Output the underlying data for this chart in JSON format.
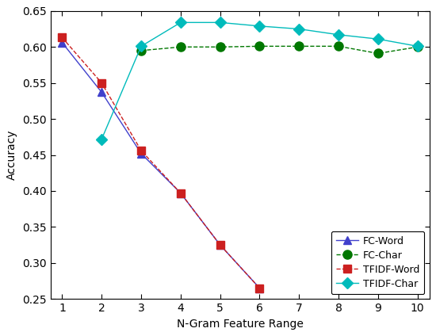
{
  "x": [
    1,
    2,
    3,
    4,
    5,
    6,
    7,
    8,
    9,
    10
  ],
  "fc_word": [
    0.606,
    0.537,
    0.452,
    0.397,
    0.325,
    0.265,
    null,
    null,
    null,
    null
  ],
  "fc_char": [
    null,
    null,
    0.595,
    0.6,
    0.6,
    0.601,
    0.601,
    0.601,
    0.591,
    0.6
  ],
  "tfidf_word": [
    0.613,
    0.55,
    0.456,
    0.397,
    0.325,
    0.265,
    null,
    null,
    null,
    null
  ],
  "tfidf_char": [
    null,
    0.472,
    0.601,
    0.634,
    0.634,
    0.629,
    0.625,
    0.617,
    0.611,
    0.601
  ],
  "fc_word_color": "#4040cc",
  "fc_char_color": "#007700",
  "tfidf_word_color": "#cc2020",
  "tfidf_char_color": "#00bbbb",
  "xlabel": "N-Gram Feature Range",
  "ylabel": "Accuracy",
  "ylim": [
    0.25,
    0.65
  ],
  "xlim_min": 0.7,
  "xlim_max": 10.3,
  "yticks": [
    0.25,
    0.3,
    0.35,
    0.4,
    0.45,
    0.5,
    0.55,
    0.6,
    0.65
  ],
  "xticks": [
    1,
    2,
    3,
    4,
    5,
    6,
    7,
    8,
    9,
    10
  ],
  "legend_labels": [
    "FC-Word",
    "FC-Char",
    "TFIDF-Word",
    "TFIDF-Char"
  ],
  "bg_color": "#ffffff",
  "linewidth": 1.0,
  "markersize_circle": 8,
  "markersize_triangle": 7,
  "markersize_square": 7,
  "markersize_diamond": 7
}
